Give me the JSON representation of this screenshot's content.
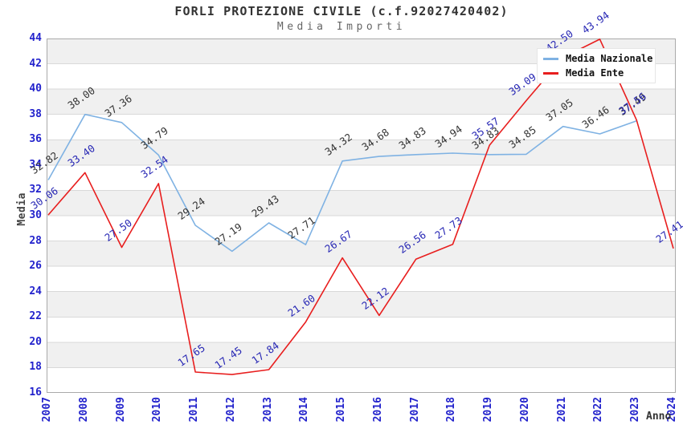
{
  "header": {
    "title": "FORLI PROTEZIONE CIVILE (c.f.92027420402)",
    "subtitle": "Media Importi"
  },
  "chart_data": {
    "type": "line",
    "title": "FORLI PROTEZIONE CIVILE (c.f.92027420402)",
    "subtitle": "Media Importi",
    "xlabel": "Anno",
    "ylabel": "Media",
    "x": [
      "2007",
      "2008",
      "2009",
      "2010",
      "2011",
      "2012",
      "2013",
      "2014",
      "2015",
      "2016",
      "2017",
      "2018",
      "2019",
      "2020",
      "2021",
      "2022",
      "2023",
      "2024"
    ],
    "series": [
      {
        "name": "Media Nazionale",
        "color": "#7fb2e3",
        "label_color": "#333333",
        "values": [
          32.82,
          38.0,
          37.36,
          34.79,
          29.24,
          27.19,
          29.43,
          27.71,
          34.32,
          34.68,
          34.83,
          34.94,
          34.83,
          34.85,
          37.05,
          36.46,
          37.49,
          null
        ]
      },
      {
        "name": "Media Ente",
        "color": "#e81e1e",
        "label_color": "#2626b4",
        "values": [
          30.06,
          33.4,
          27.5,
          32.54,
          17.65,
          17.45,
          17.84,
          21.6,
          26.67,
          22.12,
          26.56,
          27.73,
          35.57,
          39.09,
          42.5,
          43.94,
          37.56,
          27.41
        ]
      }
    ],
    "ylim": [
      16,
      44
    ],
    "ytick_step": 2,
    "grid": "horizontal-bands",
    "band_color": "#f0f0f0",
    "gridline_color": "#d9d9d9",
    "frame_color": "#aaaaaa",
    "tick_color": "#2222cc",
    "legend_position": "top-right"
  }
}
